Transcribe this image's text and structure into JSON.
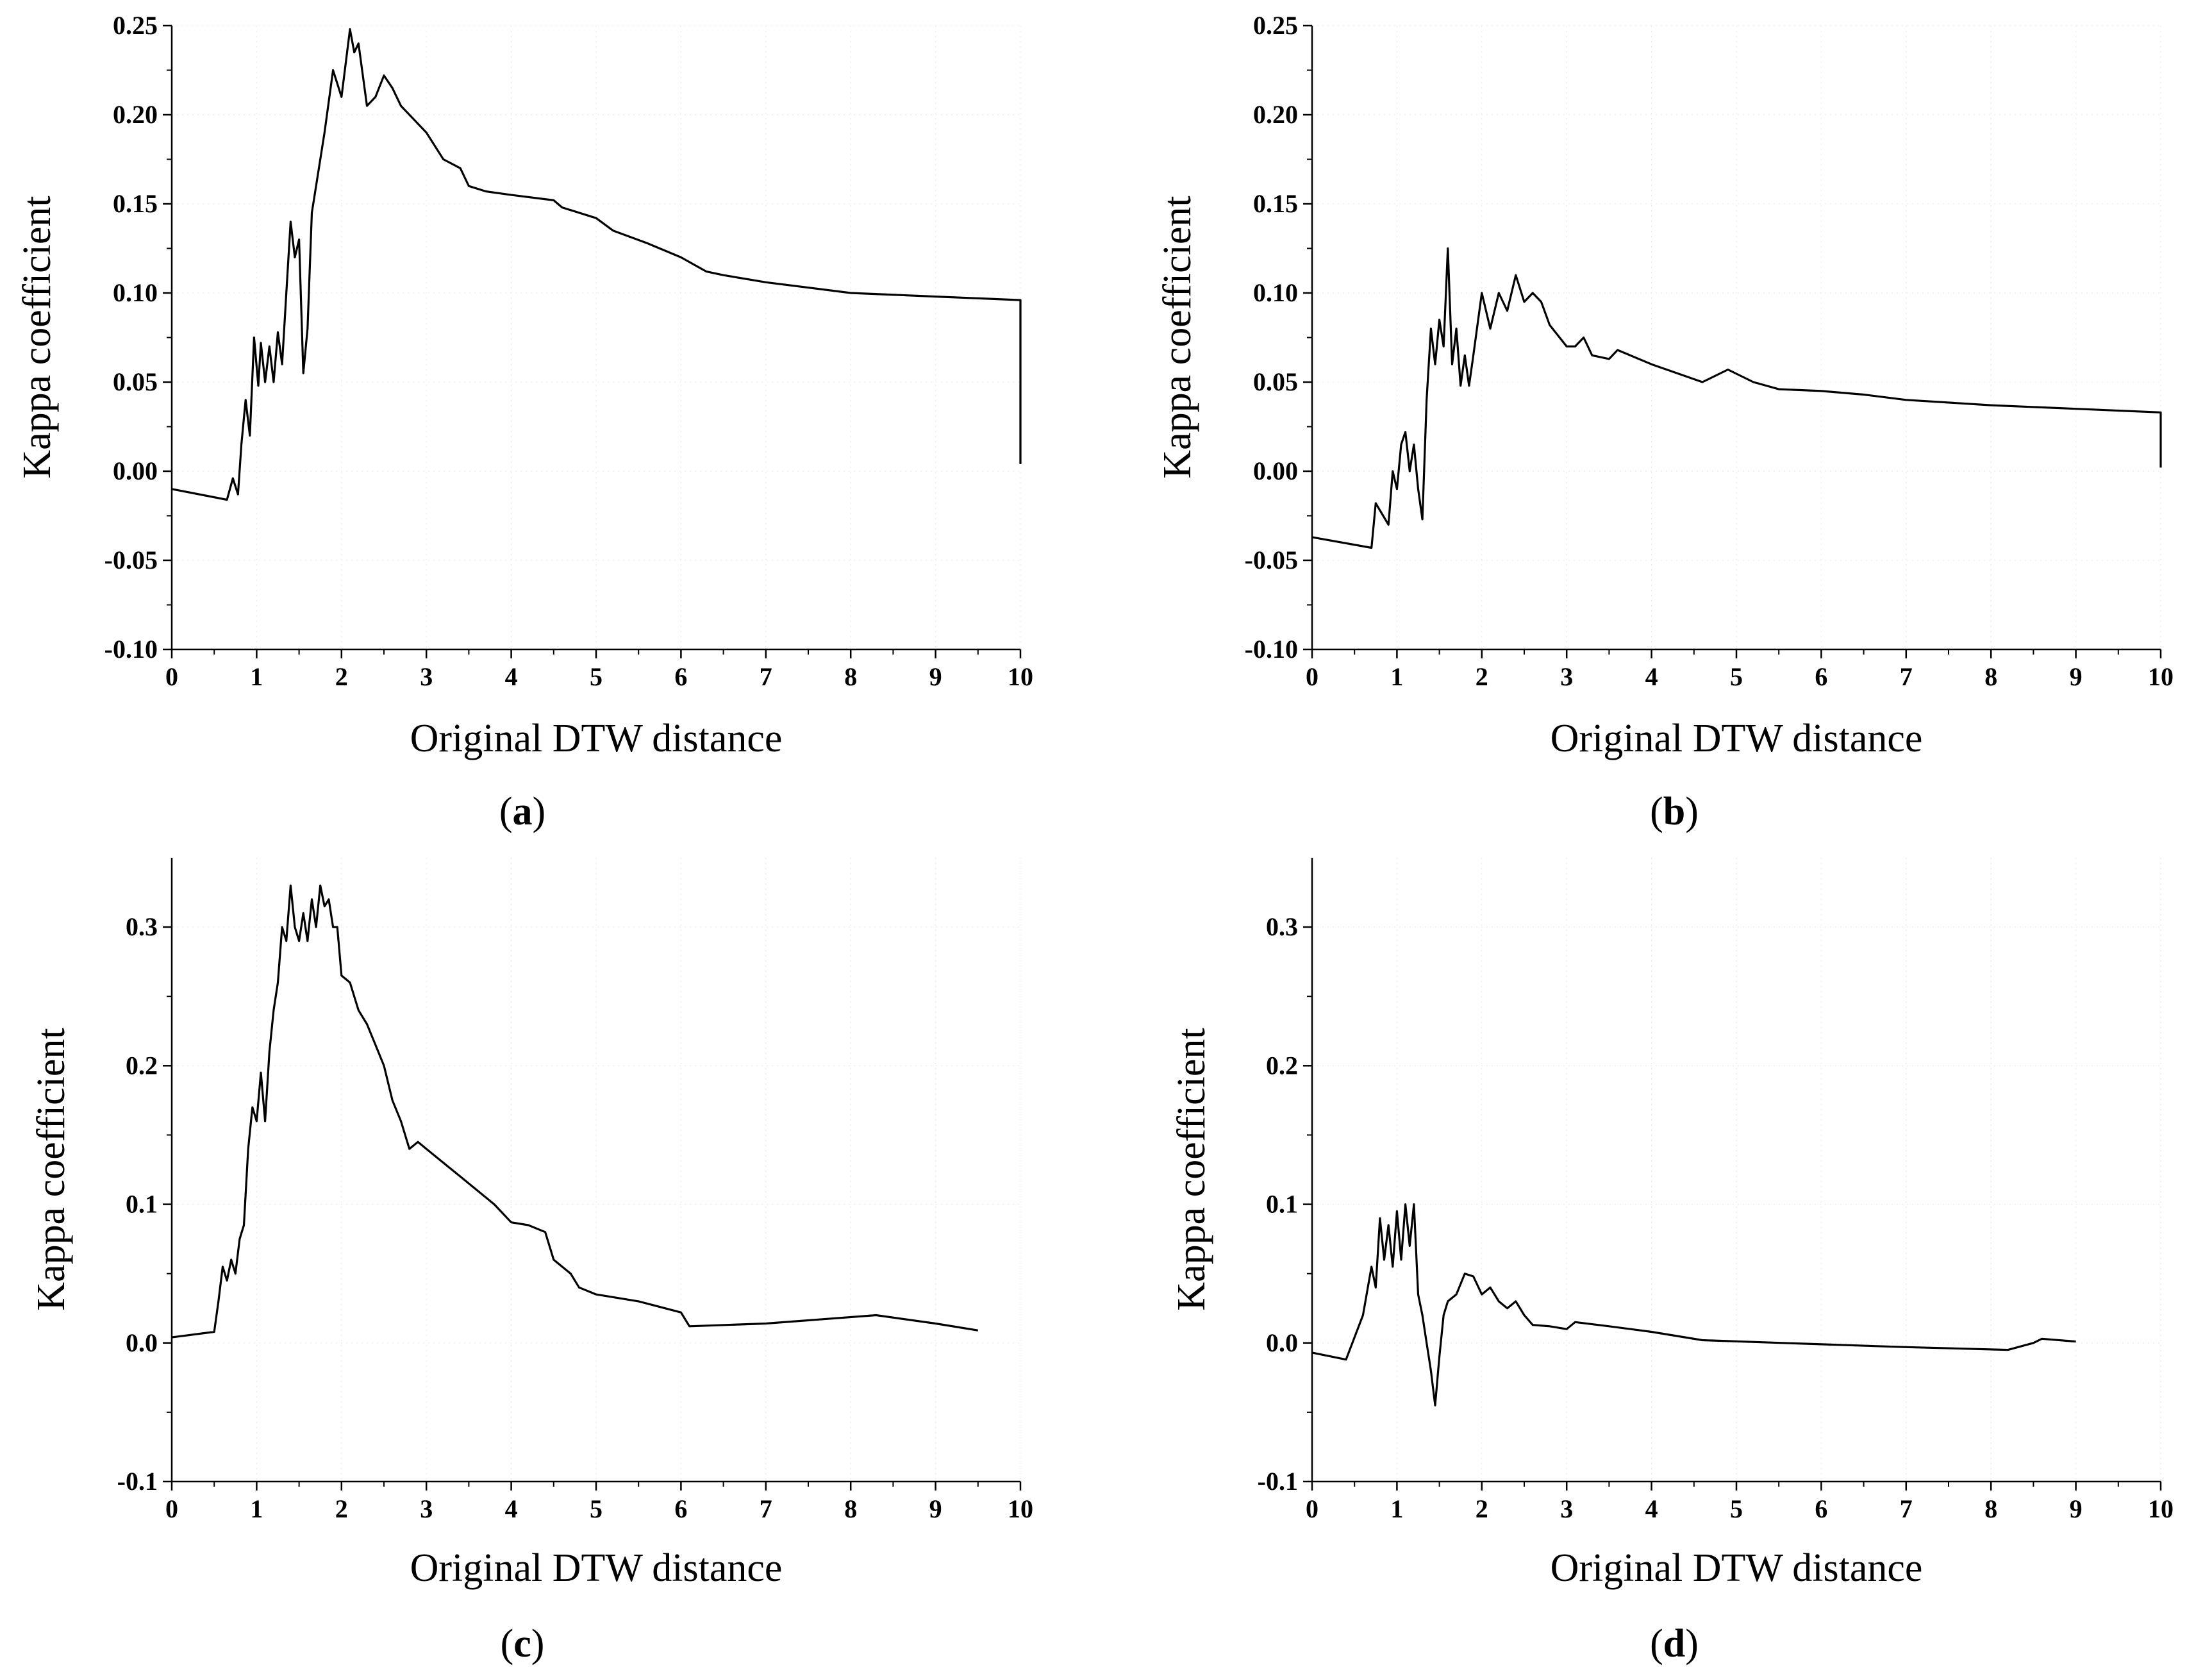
{
  "figure": {
    "panels": [
      {
        "id": "a",
        "label_open": "(",
        "label_letter": "a",
        "label_close": ")"
      },
      {
        "id": "b",
        "label_open": "(",
        "label_letter": "b",
        "label_close": ")"
      },
      {
        "id": "c",
        "label_open": "(",
        "label_letter": "c",
        "label_close": ")"
      },
      {
        "id": "d",
        "label_open": "(",
        "label_letter": "d",
        "label_close": ")"
      }
    ]
  },
  "chart_data": [
    {
      "panel": "a",
      "type": "line",
      "title": "",
      "xlabel": "Original DTW distance",
      "ylabel": "Kappa coefficient",
      "xlim": [
        0,
        10
      ],
      "ylim": [
        -0.1,
        0.25
      ],
      "xticks": [
        "0",
        "1",
        "2",
        "3",
        "4",
        "5",
        "6",
        "7",
        "8",
        "9",
        "10"
      ],
      "yticks": [
        "-0.10",
        "-0.05",
        "0.00",
        "0.05",
        "0.10",
        "0.15",
        "0.20",
        "0.25"
      ],
      "series": [
        {
          "name": "Kappa",
          "color": "#000000",
          "x": [
            0,
            0.65,
            0.72,
            0.78,
            0.82,
            0.87,
            0.92,
            0.97,
            1.02,
            1.05,
            1.1,
            1.15,
            1.2,
            1.25,
            1.3,
            1.35,
            1.4,
            1.45,
            1.5,
            1.55,
            1.6,
            1.65,
            1.7,
            1.8,
            1.9,
            2.0,
            2.1,
            2.15,
            2.2,
            2.3,
            2.4,
            2.5,
            2.6,
            2.7,
            2.8,
            3.0,
            3.2,
            3.4,
            3.5,
            3.7,
            4.0,
            4.5,
            4.6,
            5.0,
            5.2,
            5.6,
            6.0,
            6.3,
            6.5,
            7.0,
            8.0,
            9.0,
            10.0,
            10.0
          ],
          "y": [
            -0.01,
            -0.016,
            -0.004,
            -0.013,
            0.015,
            0.04,
            0.02,
            0.075,
            0.048,
            0.072,
            0.05,
            0.07,
            0.05,
            0.078,
            0.06,
            0.1,
            0.14,
            0.12,
            0.13,
            0.055,
            0.08,
            0.145,
            0.16,
            0.19,
            0.225,
            0.21,
            0.248,
            0.235,
            0.24,
            0.205,
            0.21,
            0.222,
            0.215,
            0.205,
            0.2,
            0.19,
            0.175,
            0.17,
            0.16,
            0.157,
            0.155,
            0.152,
            0.148,
            0.142,
            0.135,
            0.128,
            0.12,
            0.112,
            0.11,
            0.106,
            0.1,
            0.098,
            0.096,
            0.004
          ]
        }
      ]
    },
    {
      "panel": "b",
      "type": "line",
      "title": "",
      "xlabel": "Original DTW distance",
      "ylabel": "Kappa coefficient",
      "xlim": [
        0,
        10
      ],
      "ylim": [
        -0.1,
        0.25
      ],
      "xticks": [
        "0",
        "1",
        "2",
        "3",
        "4",
        "5",
        "6",
        "7",
        "8",
        "9",
        "10"
      ],
      "yticks": [
        "-0.10",
        "-0.05",
        "0.00",
        "0.05",
        "0.10",
        "0.15",
        "0.20",
        "0.25"
      ],
      "series": [
        {
          "name": "Kappa",
          "color": "#000000",
          "x": [
            0,
            0.7,
            0.75,
            0.9,
            0.95,
            1.0,
            1.05,
            1.1,
            1.15,
            1.2,
            1.25,
            1.3,
            1.35,
            1.4,
            1.45,
            1.5,
            1.55,
            1.6,
            1.65,
            1.7,
            1.75,
            1.8,
            1.85,
            1.9,
            2.0,
            2.1,
            2.2,
            2.3,
            2.4,
            2.5,
            2.6,
            2.7,
            2.8,
            3.0,
            3.1,
            3.2,
            3.3,
            3.5,
            3.6,
            4.0,
            4.3,
            4.6,
            4.9,
            5.2,
            5.5,
            6.0,
            6.5,
            7.0,
            8.0,
            9.0,
            10.0,
            10.0
          ],
          "y": [
            -0.037,
            -0.043,
            -0.018,
            -0.03,
            0.0,
            -0.01,
            0.015,
            0.022,
            0.0,
            0.015,
            -0.01,
            -0.027,
            0.04,
            0.08,
            0.06,
            0.085,
            0.07,
            0.125,
            0.06,
            0.08,
            0.048,
            0.065,
            0.048,
            0.065,
            0.1,
            0.08,
            0.1,
            0.09,
            0.11,
            0.095,
            0.1,
            0.095,
            0.082,
            0.07,
            0.07,
            0.075,
            0.065,
            0.063,
            0.068,
            0.06,
            0.055,
            0.05,
            0.057,
            0.05,
            0.046,
            0.045,
            0.043,
            0.04,
            0.037,
            0.035,
            0.033,
            0.002
          ]
        }
      ]
    },
    {
      "panel": "c",
      "type": "line",
      "title": "",
      "xlabel": "Original DTW distance",
      "ylabel": "Kappa coefficient",
      "xlim": [
        0,
        10
      ],
      "ylim": [
        -0.1,
        0.35
      ],
      "xticks": [
        "0",
        "1",
        "2",
        "3",
        "4",
        "5",
        "6",
        "7",
        "8",
        "9",
        "10"
      ],
      "yticks": [
        "-0.1",
        "0.0",
        "0.1",
        "0.2",
        "0.3"
      ],
      "series": [
        {
          "name": "Kappa",
          "color": "#000000",
          "x": [
            0,
            0.5,
            0.55,
            0.6,
            0.65,
            0.7,
            0.75,
            0.8,
            0.85,
            0.9,
            0.95,
            1.0,
            1.05,
            1.1,
            1.15,
            1.2,
            1.25,
            1.3,
            1.35,
            1.4,
            1.45,
            1.5,
            1.55,
            1.6,
            1.65,
            1.7,
            1.75,
            1.8,
            1.85,
            1.9,
            1.95,
            2.0,
            2.1,
            2.2,
            2.3,
            2.4,
            2.5,
            2.6,
            2.7,
            2.8,
            2.9,
            3.0,
            3.2,
            3.4,
            3.6,
            3.8,
            4.0,
            4.2,
            4.4,
            4.5,
            4.7,
            4.8,
            5.0,
            5.5,
            6.0,
            6.1,
            7.0,
            8.3,
            9.0,
            9.5
          ],
          "y": [
            0.004,
            0.008,
            0.03,
            0.055,
            0.045,
            0.06,
            0.05,
            0.075,
            0.085,
            0.14,
            0.17,
            0.16,
            0.195,
            0.16,
            0.21,
            0.24,
            0.26,
            0.3,
            0.29,
            0.33,
            0.3,
            0.29,
            0.31,
            0.29,
            0.32,
            0.3,
            0.33,
            0.315,
            0.32,
            0.3,
            0.3,
            0.265,
            0.26,
            0.24,
            0.23,
            0.215,
            0.2,
            0.175,
            0.16,
            0.14,
            0.145,
            0.14,
            0.13,
            0.12,
            0.11,
            0.1,
            0.087,
            0.085,
            0.08,
            0.06,
            0.05,
            0.04,
            0.035,
            0.03,
            0.022,
            0.012,
            0.014,
            0.02,
            0.014,
            0.009
          ]
        }
      ]
    },
    {
      "panel": "d",
      "type": "line",
      "title": "",
      "xlabel": "Original DTW distance",
      "ylabel": "Kappa coefficient",
      "xlim": [
        0,
        10
      ],
      "ylim": [
        -0.1,
        0.35
      ],
      "xticks": [
        "0",
        "1",
        "2",
        "3",
        "4",
        "5",
        "6",
        "7",
        "8",
        "9",
        "10"
      ],
      "yticks": [
        "-0.1",
        "0.0",
        "0.1",
        "0.2",
        "0.3"
      ],
      "series": [
        {
          "name": "Kappa",
          "color": "#000000",
          "x": [
            0,
            0.4,
            0.6,
            0.7,
            0.75,
            0.8,
            0.85,
            0.9,
            0.95,
            1.0,
            1.05,
            1.1,
            1.15,
            1.2,
            1.25,
            1.3,
            1.35,
            1.4,
            1.45,
            1.5,
            1.55,
            1.6,
            1.7,
            1.8,
            1.9,
            2.0,
            2.1,
            2.2,
            2.3,
            2.4,
            2.5,
            2.6,
            2.8,
            3.0,
            3.1,
            3.5,
            4.0,
            4.6,
            6.0,
            7.0,
            8.2,
            8.5,
            8.6,
            9.0
          ],
          "y": [
            -0.007,
            -0.012,
            0.02,
            0.055,
            0.04,
            0.09,
            0.06,
            0.085,
            0.055,
            0.095,
            0.06,
            0.1,
            0.07,
            0.1,
            0.035,
            0.02,
            0.0,
            -0.02,
            -0.045,
            -0.01,
            0.02,
            0.03,
            0.035,
            0.05,
            0.048,
            0.035,
            0.04,
            0.03,
            0.025,
            0.03,
            0.02,
            0.013,
            0.012,
            0.01,
            0.015,
            0.012,
            0.008,
            0.002,
            -0.001,
            -0.003,
            -0.005,
            0.0,
            0.003,
            0.001
          ]
        }
      ]
    }
  ]
}
